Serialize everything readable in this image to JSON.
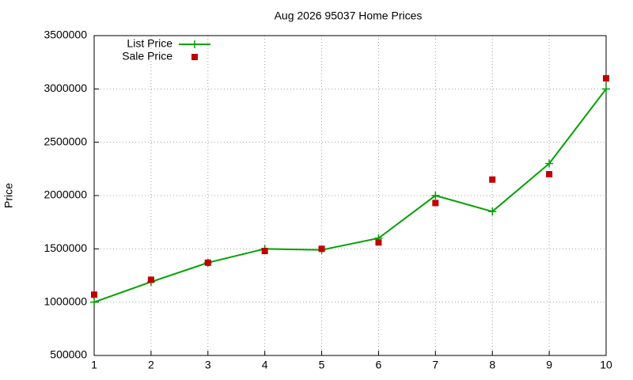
{
  "chart_data": {
    "type": "line",
    "title": "Aug 2026 95037 Home Prices",
    "y_label": "Price",
    "x": [
      1,
      2,
      3,
      4,
      5,
      6,
      7,
      8,
      9,
      10
    ],
    "series": [
      {
        "name": "List Price",
        "color": "#00a000",
        "style": "line",
        "values": [
          1000000,
          1190000,
          1370000,
          1500000,
          1490000,
          1600000,
          2000000,
          1850000,
          2300000,
          3000000
        ]
      },
      {
        "name": "Sale Price",
        "color": "#c00000",
        "style": "points",
        "values": [
          1070000,
          1210000,
          1370000,
          1480000,
          1500000,
          1560000,
          1930000,
          2150000,
          2200000,
          3100000
        ]
      }
    ],
    "xlim": [
      1,
      10
    ],
    "xticks": [
      1,
      2,
      3,
      4,
      5,
      6,
      7,
      8,
      9,
      10
    ],
    "ylim": [
      500000,
      3500000
    ],
    "yticks": [
      500000,
      1000000,
      1500000,
      2000000,
      2500000,
      3000000,
      3500000
    ],
    "grid": true,
    "legend": "top-left"
  }
}
